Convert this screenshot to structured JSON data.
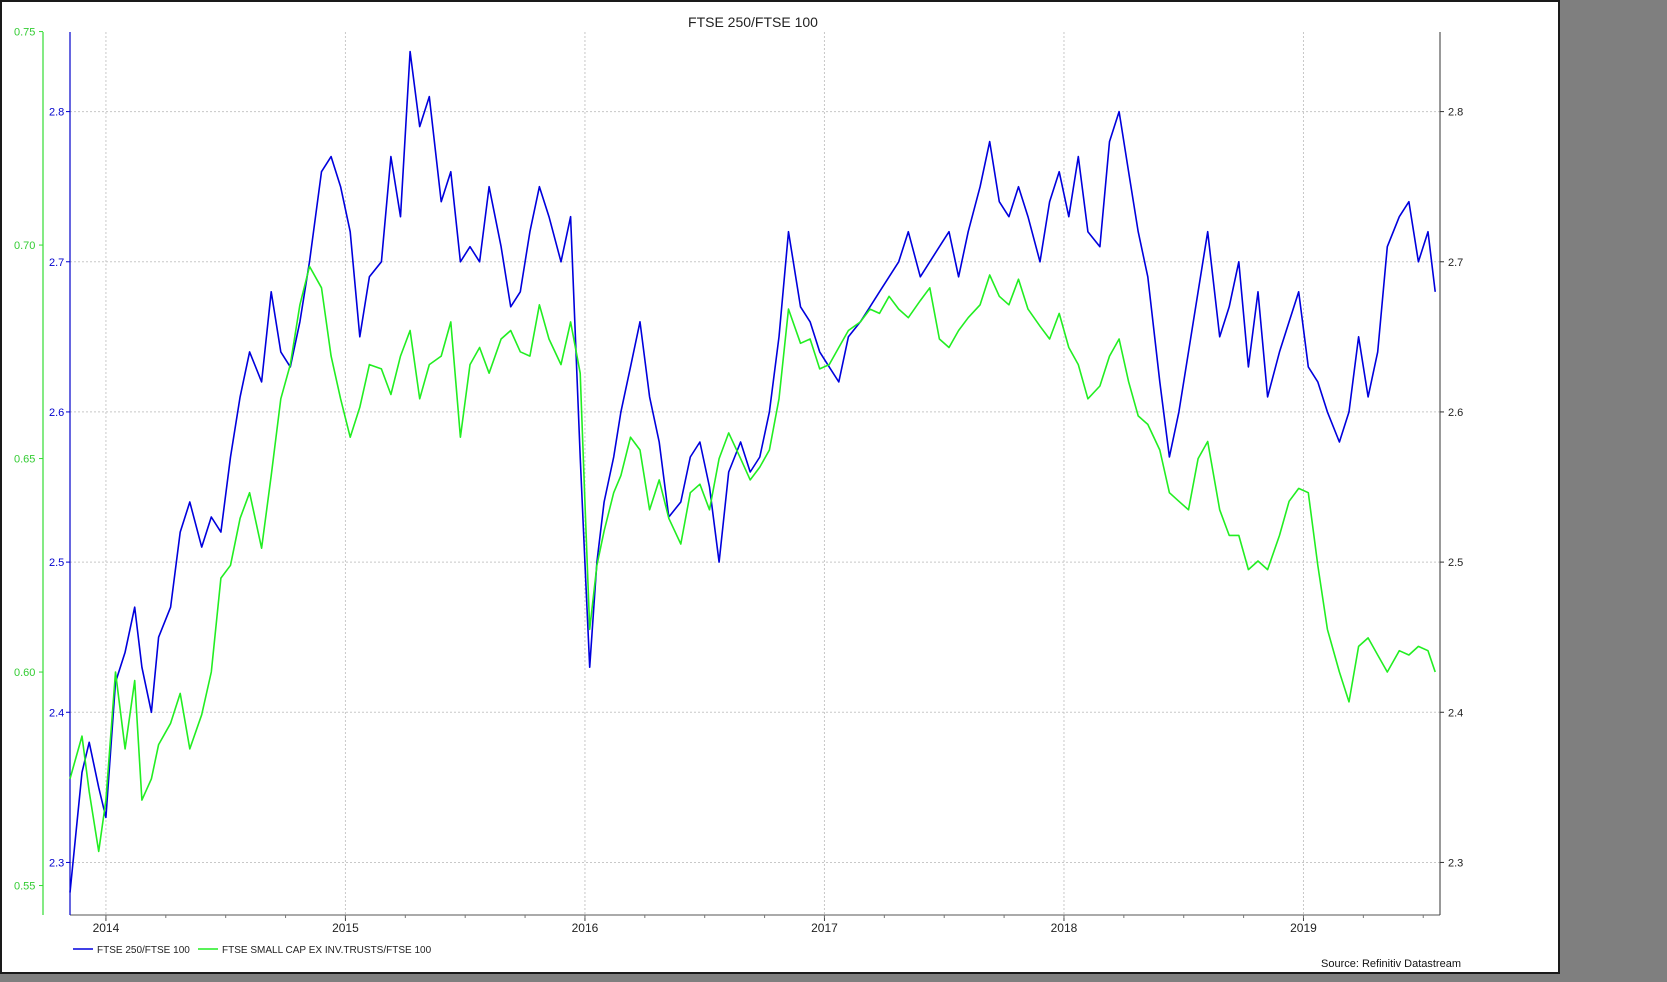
{
  "chart_data": {
    "type": "line",
    "title": "FTSE 250/FTSE 100",
    "source": "Source: Refinitiv Datastream",
    "xlabel": "",
    "ylabel": "",
    "x_ticks": [
      "2014",
      "2015",
      "2016",
      "2017",
      "2018",
      "2019"
    ],
    "right_axis": {
      "ticks": [
        "2.3",
        "2.4",
        "2.5",
        "2.6",
        "2.7",
        "2.8"
      ],
      "range": [
        2.265,
        2.853
      ]
    },
    "left_axis_blue": {
      "ticks": [
        "2.3",
        "2.4",
        "2.5",
        "2.6",
        "2.7",
        "2.8"
      ],
      "range": [
        2.265,
        2.853
      ],
      "color": "#0000cc"
    },
    "left_axis_green": {
      "ticks": [
        "0.55",
        "0.60",
        "0.65",
        "0.70",
        "0.75"
      ],
      "range": [
        0.5431,
        0.7499
      ],
      "color": "#33dd33"
    },
    "x_range": [
      2013.85,
      2019.57
    ],
    "grid": true,
    "legend_position": "bottom-left",
    "series": [
      {
        "name": "FTSE 250/FTSE 100",
        "color": "#0000dd",
        "axis": "blue",
        "x": [
          2013.85,
          2013.9,
          2013.93,
          2013.97,
          2014.0,
          2014.04,
          2014.08,
          2014.12,
          2014.15,
          2014.19,
          2014.22,
          2014.27,
          2014.31,
          2014.35,
          2014.4,
          2014.44,
          2014.48,
          2014.52,
          2014.56,
          2014.6,
          2014.65,
          2014.69,
          2014.73,
          2014.77,
          2014.81,
          2014.85,
          2014.9,
          2014.94,
          2014.98,
          2015.02,
          2015.06,
          2015.1,
          2015.15,
          2015.19,
          2015.23,
          2015.27,
          2015.31,
          2015.35,
          2015.4,
          2015.44,
          2015.48,
          2015.52,
          2015.56,
          2015.6,
          2015.65,
          2015.69,
          2015.73,
          2015.77,
          2015.81,
          2015.85,
          2015.9,
          2015.94,
          2015.98,
          2016.0,
          2016.02,
          2016.05,
          2016.08,
          2016.12,
          2016.15,
          2016.19,
          2016.23,
          2016.27,
          2016.31,
          2016.35,
          2016.4,
          2016.44,
          2016.48,
          2016.52,
          2016.56,
          2016.6,
          2016.65,
          2016.69,
          2016.73,
          2016.77,
          2016.81,
          2016.85,
          2016.9,
          2016.94,
          2016.98,
          2017.02,
          2017.06,
          2017.1,
          2017.15,
          2017.19,
          2017.23,
          2017.27,
          2017.31,
          2017.35,
          2017.4,
          2017.44,
          2017.48,
          2017.52,
          2017.56,
          2017.6,
          2017.65,
          2017.69,
          2017.73,
          2017.77,
          2017.81,
          2017.85,
          2017.9,
          2017.94,
          2017.98,
          2018.02,
          2018.06,
          2018.1,
          2018.15,
          2018.19,
          2018.23,
          2018.27,
          2018.31,
          2018.35,
          2018.4,
          2018.44,
          2018.48,
          2018.52,
          2018.56,
          2018.6,
          2018.65,
          2018.69,
          2018.73,
          2018.77,
          2018.81,
          2018.85,
          2018.9,
          2018.94,
          2018.98,
          2019.02,
          2019.06,
          2019.1,
          2019.15,
          2019.19,
          2019.23,
          2019.27,
          2019.31,
          2019.35,
          2019.4,
          2019.44,
          2019.48,
          2019.52,
          2019.55
        ],
        "y": [
          2.28,
          2.36,
          2.38,
          2.35,
          2.33,
          2.42,
          2.44,
          2.47,
          2.43,
          2.4,
          2.45,
          2.47,
          2.52,
          2.54,
          2.51,
          2.53,
          2.52,
          2.57,
          2.61,
          2.64,
          2.62,
          2.68,
          2.64,
          2.63,
          2.66,
          2.7,
          2.76,
          2.77,
          2.75,
          2.72,
          2.65,
          2.69,
          2.7,
          2.77,
          2.73,
          2.84,
          2.79,
          2.81,
          2.74,
          2.76,
          2.7,
          2.71,
          2.7,
          2.75,
          2.71,
          2.67,
          2.68,
          2.72,
          2.75,
          2.73,
          2.7,
          2.73,
          2.57,
          2.5,
          2.43,
          2.5,
          2.54,
          2.57,
          2.6,
          2.63,
          2.66,
          2.61,
          2.58,
          2.53,
          2.54,
          2.57,
          2.58,
          2.55,
          2.5,
          2.56,
          2.58,
          2.56,
          2.57,
          2.6,
          2.65,
          2.72,
          2.67,
          2.66,
          2.64,
          2.63,
          2.62,
          2.65,
          2.66,
          2.67,
          2.68,
          2.69,
          2.7,
          2.72,
          2.69,
          2.7,
          2.71,
          2.72,
          2.69,
          2.72,
          2.75,
          2.78,
          2.74,
          2.73,
          2.75,
          2.73,
          2.7,
          2.74,
          2.76,
          2.73,
          2.77,
          2.72,
          2.71,
          2.78,
          2.8,
          2.76,
          2.72,
          2.69,
          2.62,
          2.57,
          2.6,
          2.64,
          2.68,
          2.72,
          2.65,
          2.67,
          2.7,
          2.63,
          2.68,
          2.61,
          2.64,
          2.66,
          2.68,
          2.63,
          2.62,
          2.6,
          2.58,
          2.6,
          2.65,
          2.61,
          2.64,
          2.71,
          2.73,
          2.74,
          2.7,
          2.72,
          2.68
        ]
      },
      {
        "name": "FTSE SMALL CAP EX INV.TRUSTS/FTSE 100",
        "color": "#22ee22",
        "axis": "green",
        "x": [
          2013.85,
          2013.9,
          2013.93,
          2013.97,
          2014.0,
          2014.04,
          2014.08,
          2014.12,
          2014.15,
          2014.19,
          2014.22,
          2014.27,
          2014.31,
          2014.35,
          2014.4,
          2014.44,
          2014.48,
          2014.52,
          2014.56,
          2014.6,
          2014.65,
          2014.69,
          2014.73,
          2014.77,
          2014.81,
          2014.85,
          2014.9,
          2014.94,
          2014.98,
          2015.02,
          2015.06,
          2015.1,
          2015.15,
          2015.19,
          2015.23,
          2015.27,
          2015.31,
          2015.35,
          2015.4,
          2015.44,
          2015.48,
          2015.52,
          2015.56,
          2015.6,
          2015.65,
          2015.69,
          2015.73,
          2015.77,
          2015.81,
          2015.85,
          2015.9,
          2015.94,
          2015.98,
          2016.0,
          2016.02,
          2016.05,
          2016.08,
          2016.12,
          2016.15,
          2016.19,
          2016.23,
          2016.27,
          2016.31,
          2016.35,
          2016.4,
          2016.44,
          2016.48,
          2016.52,
          2016.56,
          2016.6,
          2016.65,
          2016.69,
          2016.73,
          2016.77,
          2016.81,
          2016.85,
          2016.9,
          2016.94,
          2016.98,
          2017.02,
          2017.06,
          2017.1,
          2017.15,
          2017.19,
          2017.23,
          2017.27,
          2017.31,
          2017.35,
          2017.4,
          2017.44,
          2017.48,
          2017.52,
          2017.56,
          2017.6,
          2017.65,
          2017.69,
          2017.73,
          2017.77,
          2017.81,
          2017.85,
          2017.9,
          2017.94,
          2017.98,
          2018.02,
          2018.06,
          2018.1,
          2018.15,
          2018.19,
          2018.23,
          2018.27,
          2018.31,
          2018.35,
          2018.4,
          2018.44,
          2018.48,
          2018.52,
          2018.56,
          2018.6,
          2018.65,
          2018.69,
          2018.73,
          2018.77,
          2018.81,
          2018.85,
          2018.9,
          2018.94,
          2018.98,
          2019.02,
          2019.06,
          2019.1,
          2019.15,
          2019.19,
          2019.23,
          2019.27,
          2019.31,
          2019.35,
          2019.4,
          2019.44,
          2019.48,
          2019.52,
          2019.55
        ],
        "y": [
          0.575,
          0.585,
          0.572,
          0.558,
          0.57,
          0.6,
          0.582,
          0.598,
          0.57,
          0.575,
          0.583,
          0.588,
          0.595,
          0.582,
          0.59,
          0.6,
          0.622,
          0.625,
          0.636,
          0.642,
          0.629,
          0.646,
          0.664,
          0.672,
          0.686,
          0.695,
          0.69,
          0.674,
          0.664,
          0.655,
          0.662,
          0.672,
          0.671,
          0.665,
          0.674,
          0.68,
          0.664,
          0.672,
          0.674,
          0.682,
          0.655,
          0.672,
          0.676,
          0.67,
          0.678,
          0.68,
          0.675,
          0.674,
          0.686,
          0.678,
          0.672,
          0.682,
          0.67,
          0.64,
          0.61,
          0.625,
          0.633,
          0.642,
          0.646,
          0.655,
          0.652,
          0.638,
          0.645,
          0.636,
          0.63,
          0.642,
          0.644,
          0.638,
          0.65,
          0.656,
          0.65,
          0.645,
          0.648,
          0.652,
          0.664,
          0.685,
          0.677,
          0.678,
          0.671,
          0.672,
          0.676,
          0.68,
          0.682,
          0.685,
          0.684,
          0.688,
          0.685,
          0.683,
          0.687,
          0.69,
          0.678,
          0.676,
          0.68,
          0.683,
          0.686,
          0.693,
          0.688,
          0.686,
          0.692,
          0.685,
          0.681,
          0.678,
          0.684,
          0.676,
          0.672,
          0.664,
          0.667,
          0.674,
          0.678,
          0.668,
          0.66,
          0.658,
          0.652,
          0.642,
          0.64,
          0.638,
          0.65,
          0.654,
          0.638,
          0.632,
          0.632,
          0.624,
          0.626,
          0.624,
          0.632,
          0.64,
          0.643,
          0.642,
          0.625,
          0.61,
          0.6,
          0.593,
          0.606,
          0.608,
          0.604,
          0.6,
          0.605,
          0.604,
          0.606,
          0.605,
          0.6
        ]
      }
    ]
  }
}
